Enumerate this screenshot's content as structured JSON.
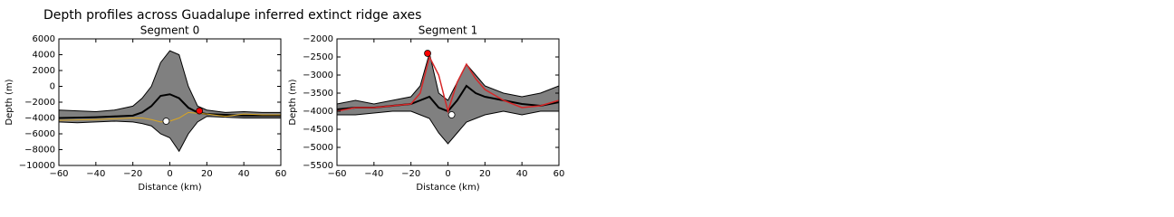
{
  "title": "Depth profiles across Guadalupe inferred extinct ridge axes",
  "chart_data": [
    {
      "type": "line",
      "title": "Segment 0",
      "xlabel": "Distance (km)",
      "ylabel": "Depth (m)",
      "x": [
        -60,
        -50,
        -40,
        -30,
        -20,
        -15,
        -10,
        -5,
        0,
        5,
        10,
        15,
        20,
        30,
        40,
        50,
        60
      ],
      "xlim": [
        -60,
        60
      ],
      "xticks": [
        {
          "value": -60,
          "label": "−60"
        },
        {
          "value": -40,
          "label": "−40"
        },
        {
          "value": -20,
          "label": "−20"
        },
        0,
        20,
        40,
        60
      ],
      "ylim": [
        -10000,
        6000
      ],
      "yticks": [
        {
          "value": -10000,
          "label": "−10000"
        },
        {
          "value": -8000,
          "label": "−8000"
        },
        {
          "value": -6000,
          "label": "−6000"
        },
        {
          "value": -4000,
          "label": "−4000"
        },
        {
          "value": -2000,
          "label": "−2000"
        },
        0,
        2000,
        4000,
        6000
      ],
      "band": {
        "color": "#808080",
        "upper": [
          -3000,
          -3100,
          -3200,
          -3000,
          -2500,
          -1500,
          0,
          3000,
          4500,
          4000,
          0,
          -2500,
          -3000,
          -3300,
          -3200,
          -3300,
          -3300
        ],
        "lower": [
          -4500,
          -4600,
          -4500,
          -4400,
          -4500,
          -4700,
          -5000,
          -6000,
          -6500,
          -8200,
          -6000,
          -4500,
          -3800,
          -3900,
          -4000,
          -4000,
          -4000
        ]
      },
      "series": [
        {
          "color": "#000000",
          "width": 2,
          "values": [
            -4000,
            -3950,
            -3900,
            -3800,
            -3700,
            -3300,
            -2500,
            -1200,
            -1000,
            -1500,
            -2700,
            -3300,
            -3500,
            -3600,
            -3700,
            -3700,
            -3700
          ]
        },
        {
          "color": "#daa520",
          "width": 1,
          "values": [
            -4300,
            -4250,
            -4200,
            -4100,
            -4000,
            -4000,
            -4200,
            -4500,
            -4400,
            -4000,
            -3300,
            -3400,
            -3500,
            -3800,
            -3500,
            -3600,
            -3600
          ]
        }
      ],
      "points": [
        {
          "x": -2,
          "y": -4400,
          "color": "#ffffff"
        },
        {
          "x": 16,
          "y": -3100,
          "color": "#ff0000"
        }
      ]
    },
    {
      "type": "line",
      "title": "Segment 1",
      "xlabel": "Distance (km)",
      "ylabel": "Depth (m)",
      "x": [
        -60,
        -50,
        -40,
        -30,
        -20,
        -15,
        -10,
        -5,
        0,
        5,
        10,
        15,
        20,
        30,
        40,
        50,
        60
      ],
      "xlim": [
        -60,
        60
      ],
      "xticks": [
        {
          "value": -60,
          "label": "−60"
        },
        {
          "value": -40,
          "label": "−40"
        },
        {
          "value": -20,
          "label": "−20"
        },
        0,
        20,
        40,
        60
      ],
      "ylim": [
        -5500,
        -2000
      ],
      "yticks": [
        {
          "value": -5500,
          "label": "−5500"
        },
        {
          "value": -5000,
          "label": "−5000"
        },
        {
          "value": -4500,
          "label": "−4500"
        },
        {
          "value": -4000,
          "label": "−4000"
        },
        {
          "value": -3500,
          "label": "−3500"
        },
        {
          "value": -3000,
          "label": "−3000"
        },
        {
          "value": -2500,
          "label": "−2500"
        },
        {
          "value": -2000,
          "label": "−2000"
        }
      ],
      "band": {
        "color": "#808080",
        "upper": [
          -3800,
          -3700,
          -3800,
          -3700,
          -3600,
          -3300,
          -2400,
          -3500,
          -3700,
          -3200,
          -2700,
          -3000,
          -3300,
          -3500,
          -3600,
          -3500,
          -3300
        ],
        "lower": [
          -4100,
          -4100,
          -4050,
          -4000,
          -4000,
          -4100,
          -4200,
          -4600,
          -4900,
          -4600,
          -4300,
          -4200,
          -4100,
          -4000,
          -4100,
          -4000,
          -4000
        ]
      },
      "series": [
        {
          "color": "#000000",
          "width": 2,
          "values": [
            -3950,
            -3900,
            -3900,
            -3850,
            -3800,
            -3700,
            -3600,
            -3900,
            -4000,
            -3700,
            -3300,
            -3500,
            -3600,
            -3700,
            -3800,
            -3850,
            -3750
          ]
        },
        {
          "color": "#d62728",
          "width": 1.5,
          "values": [
            -4000,
            -3900,
            -3900,
            -3850,
            -3800,
            -3500,
            -2500,
            -3000,
            -4000,
            -3200,
            -2700,
            -3100,
            -3400,
            -3700,
            -3900,
            -3850,
            -3700
          ]
        }
      ],
      "points": [
        {
          "x": -11,
          "y": -2400,
          "color": "#ff0000"
        },
        {
          "x": 2,
          "y": -4100,
          "color": "#ffffff"
        }
      ]
    }
  ]
}
